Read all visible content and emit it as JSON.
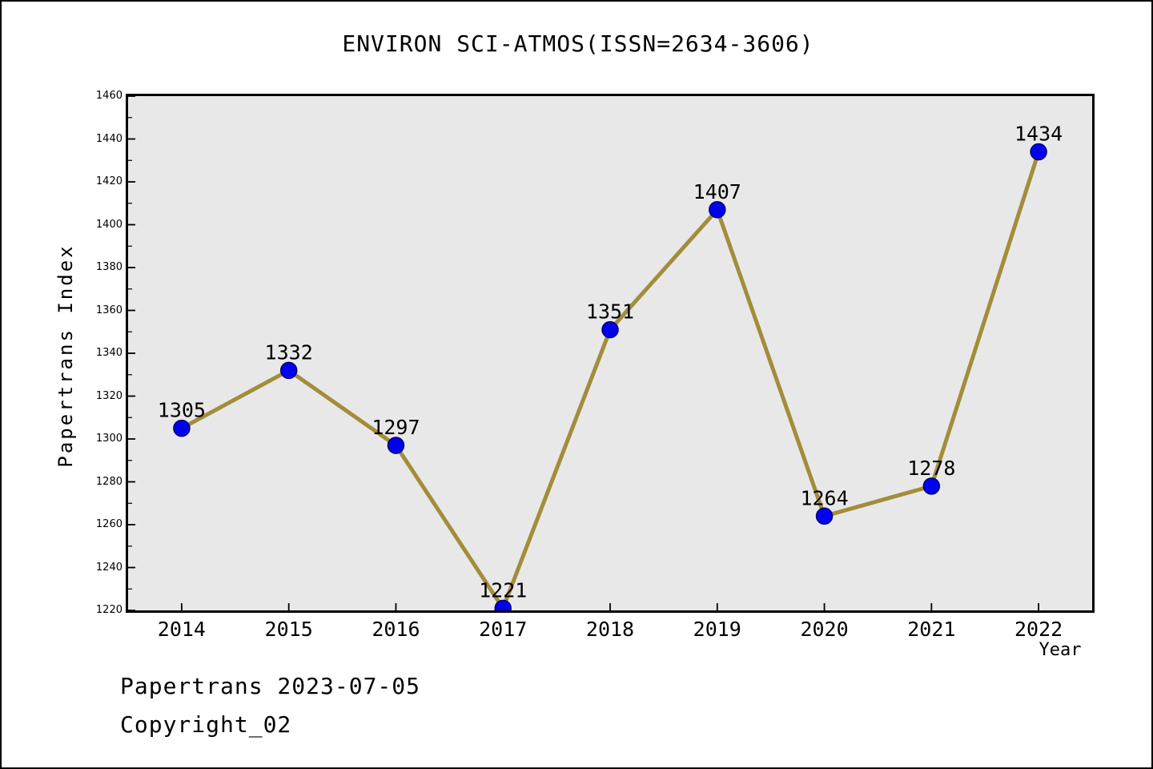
{
  "header": {
    "title": "ENVIRON SCI-ATMOS(ISSN=2634-3606)"
  },
  "footer": {
    "line1": "Papertrans 2023-07-05",
    "line2": "Copyright_02"
  },
  "chart_data": {
    "type": "line",
    "title": "ENVIRON SCI-ATMOS(ISSN=2634-3606)",
    "xlabel": "Year",
    "ylabel": "Papertrans Index",
    "categories": [
      "2014",
      "2015",
      "2016",
      "2017",
      "2018",
      "2019",
      "2020",
      "2021",
      "2022"
    ],
    "values": [
      1305,
      1332,
      1297,
      1221,
      1351,
      1407,
      1264,
      1278,
      1434
    ],
    "data_labels": [
      "1305",
      "1332",
      "1297",
      "1221",
      "1351",
      "1407",
      "1264",
      "1278",
      "1434"
    ],
    "ylim": [
      1220,
      1460
    ],
    "ytick_step": 20,
    "yminor_step": 10,
    "yticks": [
      "1220",
      "1240",
      "1260",
      "1280",
      "1300",
      "1320",
      "1340",
      "1360",
      "1380",
      "1400",
      "1420",
      "1440",
      "1460"
    ],
    "grid": false,
    "legend": "none",
    "colors": {
      "line": "#a28d3a",
      "marker_fill": "#0000f0",
      "marker_edge": "#000070",
      "plot_background": "#e8e8e8",
      "axis": "#000000",
      "text": "#000000"
    }
  }
}
